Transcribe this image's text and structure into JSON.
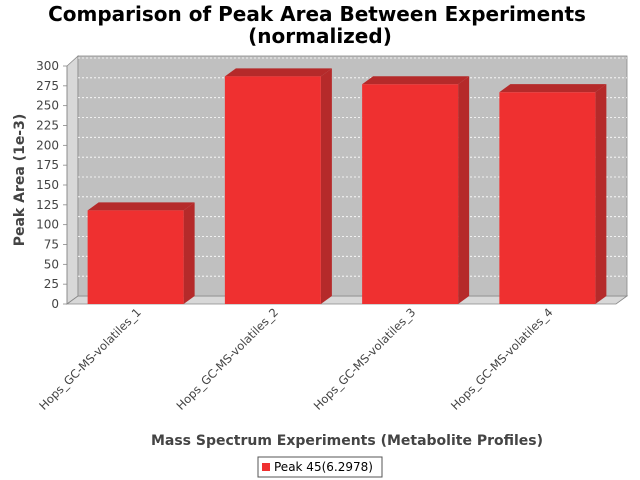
{
  "chart_data": {
    "type": "bar",
    "title_line1": "Comparison of Peak Area Between Experiments",
    "title_line2": "(normalized)",
    "xlabel": "Mass Spectrum Experiments (Metabolite Profiles)",
    "ylabel": "Peak Area (1e-3)",
    "categories": [
      "Hops_GC-MS-volatiles_1",
      "Hops_GC-MS-volatiles_2",
      "Hops_GC-MS-volatiles_3",
      "Hops_GC-MS-volatiles_4"
    ],
    "series": [
      {
        "name": "Peak 45(6.2978)",
        "values": [
          118,
          287,
          277,
          267
        ]
      }
    ],
    "ylim": [
      0,
      300
    ],
    "yticks": [
      0,
      25,
      50,
      75,
      100,
      125,
      150,
      175,
      200,
      225,
      250,
      275,
      300
    ],
    "grid": true,
    "legend_position": "bottom",
    "style": "3d",
    "colors": {
      "bar_front": "#ef3030",
      "bar_top": "#b52a2a",
      "bar_side": "#b52a2a",
      "plot_back": "#c0c0c0",
      "plot_wall": "#d8d8d8",
      "grid": "#ffffff"
    }
  }
}
